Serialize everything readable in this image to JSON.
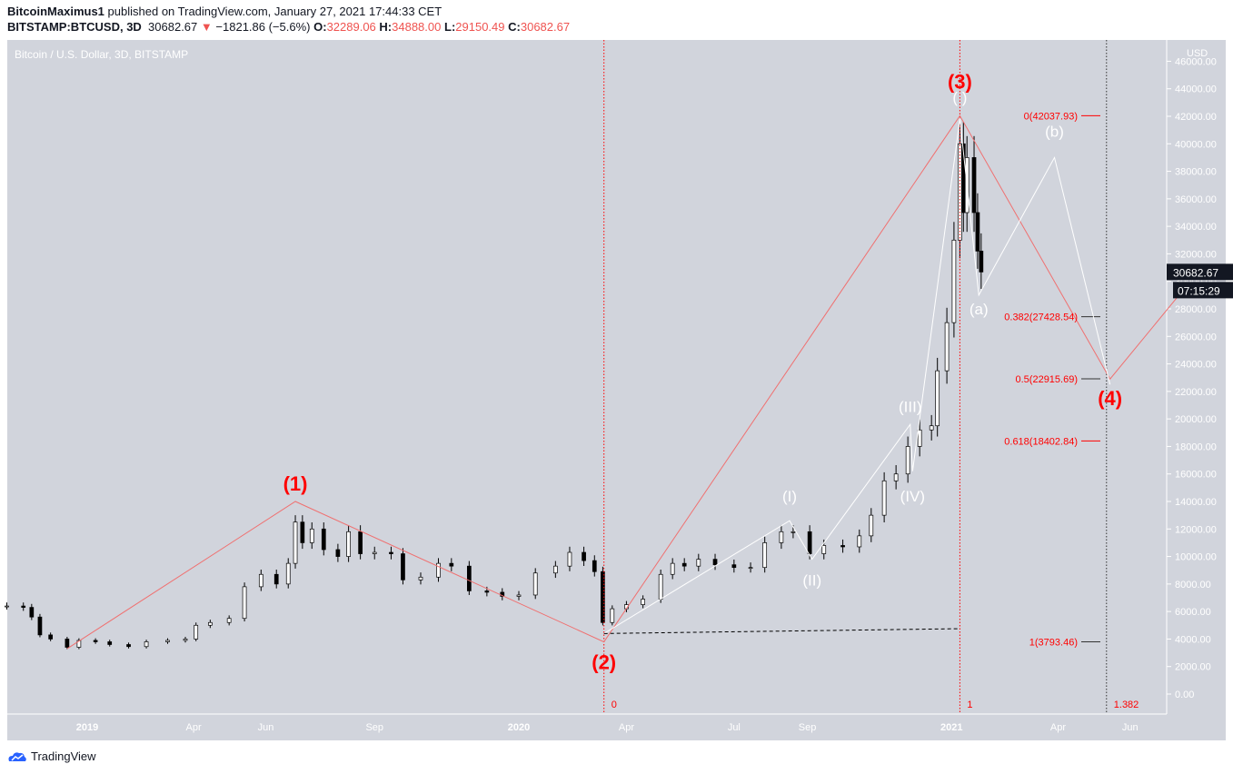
{
  "header": {
    "author": "BitcoinMaximus1",
    "published": "published on TradingView.com, January 27, 2021 17:44:33 CET",
    "symbol": "BITSTAMP:BTCUSD, 3D",
    "last": "30682.67",
    "change": "−1821.86 (−5.6%)",
    "o_label": "O:",
    "o": "32289.06",
    "h_label": "H:",
    "h": "34888.00",
    "l_label": "L:",
    "l": "29150.49",
    "c_label": "C:",
    "c": "30682.67"
  },
  "footer": {
    "brand": "TradingView"
  },
  "chart_data": {
    "type": "candlestick",
    "title": "Bitcoin / U.S. Dollar, 3D, BITSTAMP",
    "y_unit": "USD",
    "ylim": [
      0,
      46000
    ],
    "y_ticks": [
      "0.00",
      "2000.00",
      "4000.00",
      "6000.00",
      "8000.00",
      "10000.00",
      "12000.00",
      "14000.00",
      "16000.00",
      "18000.00",
      "20000.00",
      "22000.00",
      "24000.00",
      "26000.00",
      "28000.00",
      "30000.00",
      "32000.00",
      "34000.00",
      "36000.00",
      "38000.00",
      "40000.00",
      "42000.00",
      "44000.00",
      "46000.00"
    ],
    "x_ticks": [
      {
        "label": "2019",
        "date": "2019-01-01"
      },
      {
        "label": "Apr",
        "date": "2019-04-01"
      },
      {
        "label": "Jun",
        "date": "2019-06-01"
      },
      {
        "label": "Sep",
        "date": "2019-09-01"
      },
      {
        "label": "2020",
        "date": "2020-01-01"
      },
      {
        "label": "Apr",
        "date": "2020-04-01"
      },
      {
        "label": "Jul",
        "date": "2020-07-01"
      },
      {
        "label": "Sep",
        "date": "2020-09-01"
      },
      {
        "label": "2021",
        "date": "2021-01-01"
      },
      {
        "label": "Apr",
        "date": "2021-04-01"
      },
      {
        "label": "Jun",
        "date": "2021-06-01"
      }
    ],
    "xlim": [
      "2018-10-25",
      "2021-07-20"
    ],
    "price_label": "30682.67",
    "countdown": "07:15:29",
    "colors": {
      "bg": "#d1d4dc",
      "red": "#ff0000",
      "redline": "#f07070",
      "white": "#ffffff",
      "candle": "#000000"
    },
    "prices": [
      [
        "2018-10-25",
        6400
      ],
      [
        "2018-11-08",
        6300
      ],
      [
        "2018-11-15",
        5600
      ],
      [
        "2018-11-22",
        4300
      ],
      [
        "2018-12-01",
        4000
      ],
      [
        "2018-12-15",
        3400
      ],
      [
        "2018-12-25",
        3900
      ],
      [
        "2019-01-08",
        3800
      ],
      [
        "2019-01-20",
        3600
      ],
      [
        "2019-02-05",
        3450
      ],
      [
        "2019-02-20",
        3800
      ],
      [
        "2019-03-10",
        3900
      ],
      [
        "2019-03-25",
        4000
      ],
      [
        "2019-04-03",
        5000
      ],
      [
        "2019-04-15",
        5200
      ],
      [
        "2019-05-01",
        5500
      ],
      [
        "2019-05-14",
        7800
      ],
      [
        "2019-05-28",
        8700
      ],
      [
        "2019-06-10",
        8000
      ],
      [
        "2019-06-20",
        9500
      ],
      [
        "2019-06-26",
        12500
      ],
      [
        "2019-07-02",
        11000
      ],
      [
        "2019-07-10",
        12000
      ],
      [
        "2019-07-20",
        10500
      ],
      [
        "2019-08-01",
        10000
      ],
      [
        "2019-08-10",
        11800
      ],
      [
        "2019-08-20",
        10200
      ],
      [
        "2019-09-01",
        10300
      ],
      [
        "2019-09-15",
        10200
      ],
      [
        "2019-09-25",
        8300
      ],
      [
        "2019-10-10",
        8500
      ],
      [
        "2019-10-25",
        9500
      ],
      [
        "2019-11-05",
        9300
      ],
      [
        "2019-11-20",
        7500
      ],
      [
        "2019-12-05",
        7400
      ],
      [
        "2019-12-18",
        7100
      ],
      [
        "2020-01-01",
        7200
      ],
      [
        "2020-01-15",
        8800
      ],
      [
        "2020-02-01",
        9300
      ],
      [
        "2020-02-13",
        10300
      ],
      [
        "2020-02-25",
        9700
      ],
      [
        "2020-03-05",
        8900
      ],
      [
        "2020-03-12",
        5200
      ],
      [
        "2020-03-20",
        6200
      ],
      [
        "2020-04-01",
        6500
      ],
      [
        "2020-04-15",
        6900
      ],
      [
        "2020-04-30",
        8700
      ],
      [
        "2020-05-10",
        9500
      ],
      [
        "2020-05-20",
        9300
      ],
      [
        "2020-06-01",
        9800
      ],
      [
        "2020-06-15",
        9400
      ],
      [
        "2020-07-01",
        9200
      ],
      [
        "2020-07-15",
        9200
      ],
      [
        "2020-07-27",
        11000
      ],
      [
        "2020-08-10",
        11800
      ],
      [
        "2020-08-20",
        11800
      ],
      [
        "2020-09-03",
        10200
      ],
      [
        "2020-09-15",
        10800
      ],
      [
        "2020-10-01",
        10700
      ],
      [
        "2020-10-15",
        11500
      ],
      [
        "2020-10-25",
        13000
      ],
      [
        "2020-11-05",
        15500
      ],
      [
        "2020-11-15",
        16000
      ],
      [
        "2020-11-25",
        18000
      ],
      [
        "2020-12-05",
        19200
      ],
      [
        "2020-12-15",
        19500
      ],
      [
        "2020-12-20",
        23500
      ],
      [
        "2020-12-28",
        27000
      ],
      [
        "2021-01-03",
        33000
      ],
      [
        "2021-01-08",
        40000
      ],
      [
        "2021-01-11",
        35000
      ],
      [
        "2021-01-14",
        39000
      ],
      [
        "2021-01-20",
        35000
      ],
      [
        "2021-01-23",
        32200
      ],
      [
        "2021-01-26",
        30682.67
      ]
    ],
    "fib_levels": [
      {
        "label": "0(42037.93)",
        "value": 42037.93
      },
      {
        "label": "0.382(27428.54)",
        "value": 27428.54
      },
      {
        "label": "0.5(22915.69)",
        "value": 22915.69
      },
      {
        "label": "0.618(18402.84)",
        "value": 18402.84
      },
      {
        "label": "1(3793.46)",
        "value": 3793.46
      }
    ],
    "time_fib": [
      {
        "label": "0",
        "date": "2020-03-13"
      },
      {
        "label": "1",
        "date": "2021-01-08"
      },
      {
        "label": "1.382",
        "date": "2021-05-12"
      }
    ],
    "wave_labels_major": [
      {
        "label": "(1)",
        "date": "2019-06-26",
        "value": 14800
      },
      {
        "label": "(2)",
        "date": "2020-03-13",
        "value": 1800
      },
      {
        "label": "(3)",
        "date": "2021-01-08",
        "value": 44000
      },
      {
        "label": "(4)",
        "date": "2021-05-15",
        "value": 21000
      }
    ],
    "wave_labels_minor": [
      {
        "label": "(I)",
        "date": "2020-08-17",
        "value": 14000
      },
      {
        "label": "(II)",
        "date": "2020-09-05",
        "value": 7900
      },
      {
        "label": "(III)",
        "date": "2020-11-27",
        "value": 20500
      },
      {
        "label": "(IV)",
        "date": "2020-11-29",
        "value": 14000
      },
      {
        "label": "(a)",
        "date": "2021-01-24",
        "value": 27600
      },
      {
        "label": "(b)",
        "date": "2021-03-29",
        "value": 40500
      },
      {
        "label": "( )",
        "date": "2021-01-08",
        "value": 43000
      }
    ],
    "major_path": [
      [
        "2018-12-15",
        3300
      ],
      [
        "2019-06-26",
        14000
      ],
      [
        "2020-03-13",
        3793
      ],
      [
        "2021-01-08",
        42037
      ],
      [
        "2021-05-15",
        22900
      ],
      [
        "2021-07-20",
        29800
      ]
    ],
    "minor_path": [
      [
        "2020-03-13",
        4400
      ],
      [
        "2020-08-17",
        12600
      ],
      [
        "2020-09-05",
        9800
      ],
      [
        "2020-11-27",
        19600
      ],
      [
        "2020-11-29",
        16200
      ],
      [
        "2021-01-08",
        41800
      ],
      [
        "2021-01-24",
        29000
      ],
      [
        "2021-03-29",
        39000
      ],
      [
        "2021-05-15",
        22500
      ]
    ],
    "dashed_line": [
      [
        "2020-03-13",
        4400
      ],
      [
        "2021-01-06",
        4750
      ]
    ]
  }
}
